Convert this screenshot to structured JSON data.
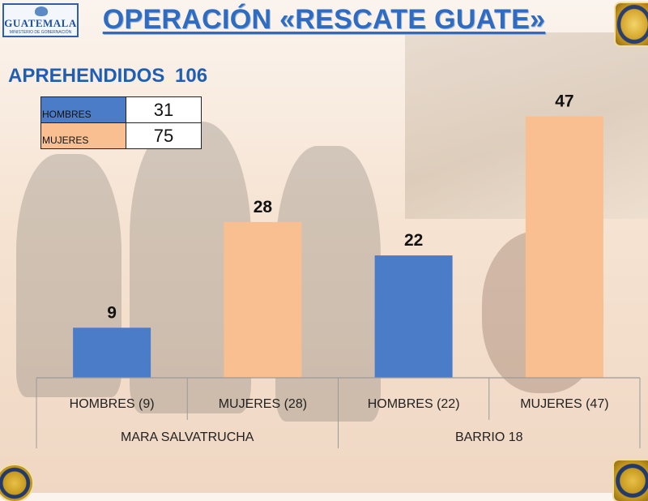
{
  "header": {
    "title": "OPERACIÓN «RESCATE GUATE»",
    "logo_text": "GUATEMALA",
    "logo_subtext": "MINISTERIO DE GOBERNACIÓN"
  },
  "summary": {
    "label": "APREHENDIDOS",
    "total": "106",
    "rows": [
      {
        "label": "HOMBRES",
        "value": "31",
        "color": "#4a7cc7"
      },
      {
        "label": "MUJERES",
        "value": "75",
        "color": "#f9bf90"
      }
    ]
  },
  "chart_data": {
    "type": "bar",
    "groups": [
      "MARA SALVATRUCHA",
      "BARRIO 18"
    ],
    "categories": [
      "HOMBRES (9)",
      "MUJERES (28)",
      "HOMBRES (22)",
      "MUJERES (47)"
    ],
    "values": [
      9,
      28,
      22,
      47
    ],
    "colors": [
      "#4a7cc7",
      "#f9bf90",
      "#4a7cc7",
      "#f9bf90"
    ],
    "ylim": [
      0,
      50
    ],
    "grid": false,
    "legend": "none"
  }
}
